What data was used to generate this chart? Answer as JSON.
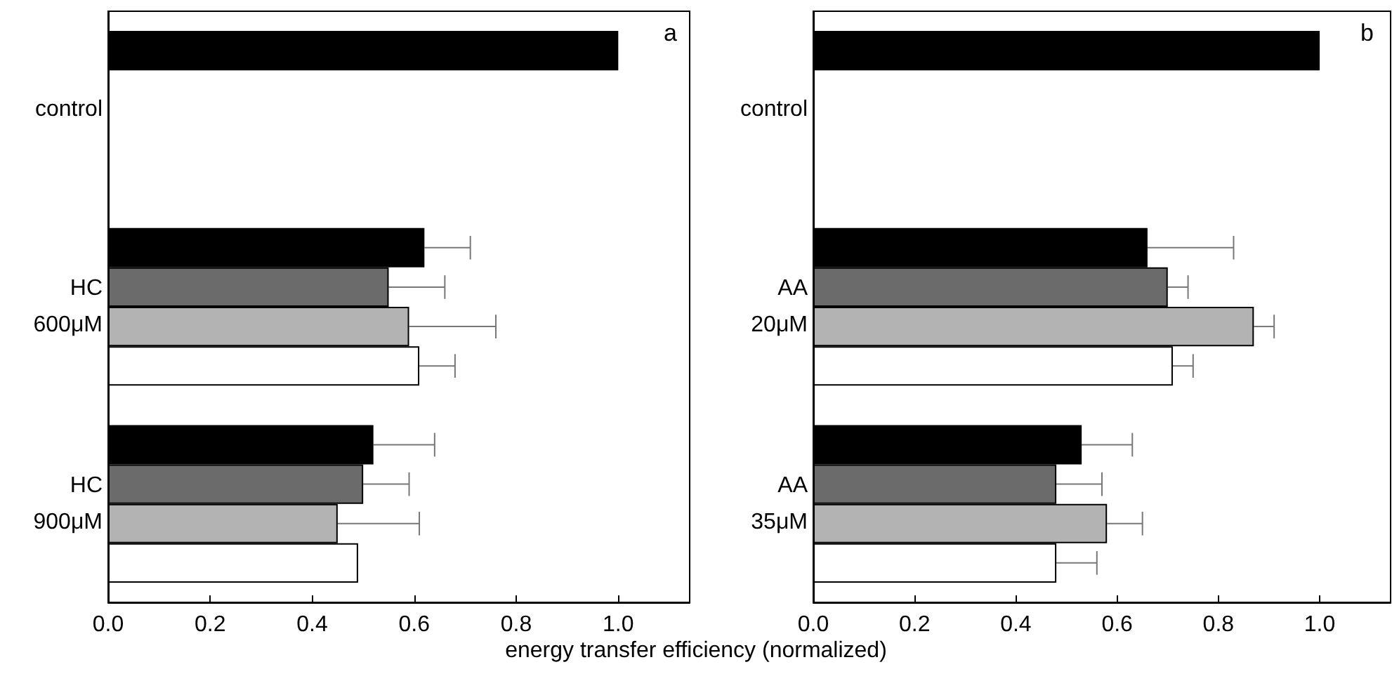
{
  "chart_data": [
    {
      "type": "bar",
      "orientation": "horizontal",
      "title": "a",
      "xlabel": "energy transfer efficiency (normalized)",
      "categories": [
        "control",
        "HC\n600μM",
        "HC\n900μM"
      ],
      "xlim": [
        0,
        1.14
      ],
      "xticks": [
        {
          "value": 0,
          "label": "0.0"
        },
        {
          "value": 0.2,
          "label": "0.2"
        },
        {
          "value": 0.4,
          "label": "0.4"
        },
        {
          "value": 0.6,
          "label": "0.6"
        },
        {
          "value": 0.8,
          "label": "0.8"
        },
        {
          "value": 1,
          "label": "1.0"
        }
      ],
      "series": [
        {
          "color": "#000000",
          "values": [
            1.0,
            0.62,
            0.52
          ],
          "errors": [
            null,
            0.09,
            0.12
          ]
        },
        {
          "color": "#6b6b6b",
          "values": [
            null,
            0.55,
            0.5
          ],
          "errors": [
            null,
            0.11,
            0.09
          ]
        },
        {
          "color": "#b3b3b3",
          "values": [
            null,
            0.59,
            0.45
          ],
          "errors": [
            null,
            0.17,
            0.16
          ]
        },
        {
          "color": "#ffffff",
          "values": [
            null,
            0.61,
            0.49
          ],
          "errors": [
            null,
            0.07,
            null
          ]
        }
      ]
    },
    {
      "type": "bar",
      "orientation": "horizontal",
      "title": "b",
      "categories": [
        "control",
        "AA\n20μM",
        "AA\n35μM"
      ],
      "xlim": [
        0,
        1.14
      ],
      "xticks": [
        {
          "value": 0,
          "label": "0.0"
        },
        {
          "value": 0.2,
          "label": "0.2"
        },
        {
          "value": 0.4,
          "label": "0.4"
        },
        {
          "value": 0.6,
          "label": "0.6"
        },
        {
          "value": 0.8,
          "label": "0.8"
        },
        {
          "value": 1,
          "label": "1.0"
        }
      ],
      "series": [
        {
          "color": "#000000",
          "values": [
            1.0,
            0.66,
            0.53
          ],
          "errors": [
            null,
            0.17,
            0.1
          ]
        },
        {
          "color": "#6b6b6b",
          "values": [
            null,
            0.7,
            0.48
          ],
          "errors": [
            null,
            0.04,
            0.09
          ]
        },
        {
          "color": "#b3b3b3",
          "values": [
            null,
            0.87,
            0.58
          ],
          "errors": [
            null,
            0.04,
            0.07
          ]
        },
        {
          "color": "#ffffff",
          "values": [
            null,
            0.71,
            0.48
          ],
          "errors": [
            null,
            0.04,
            0.08
          ]
        }
      ]
    }
  ]
}
